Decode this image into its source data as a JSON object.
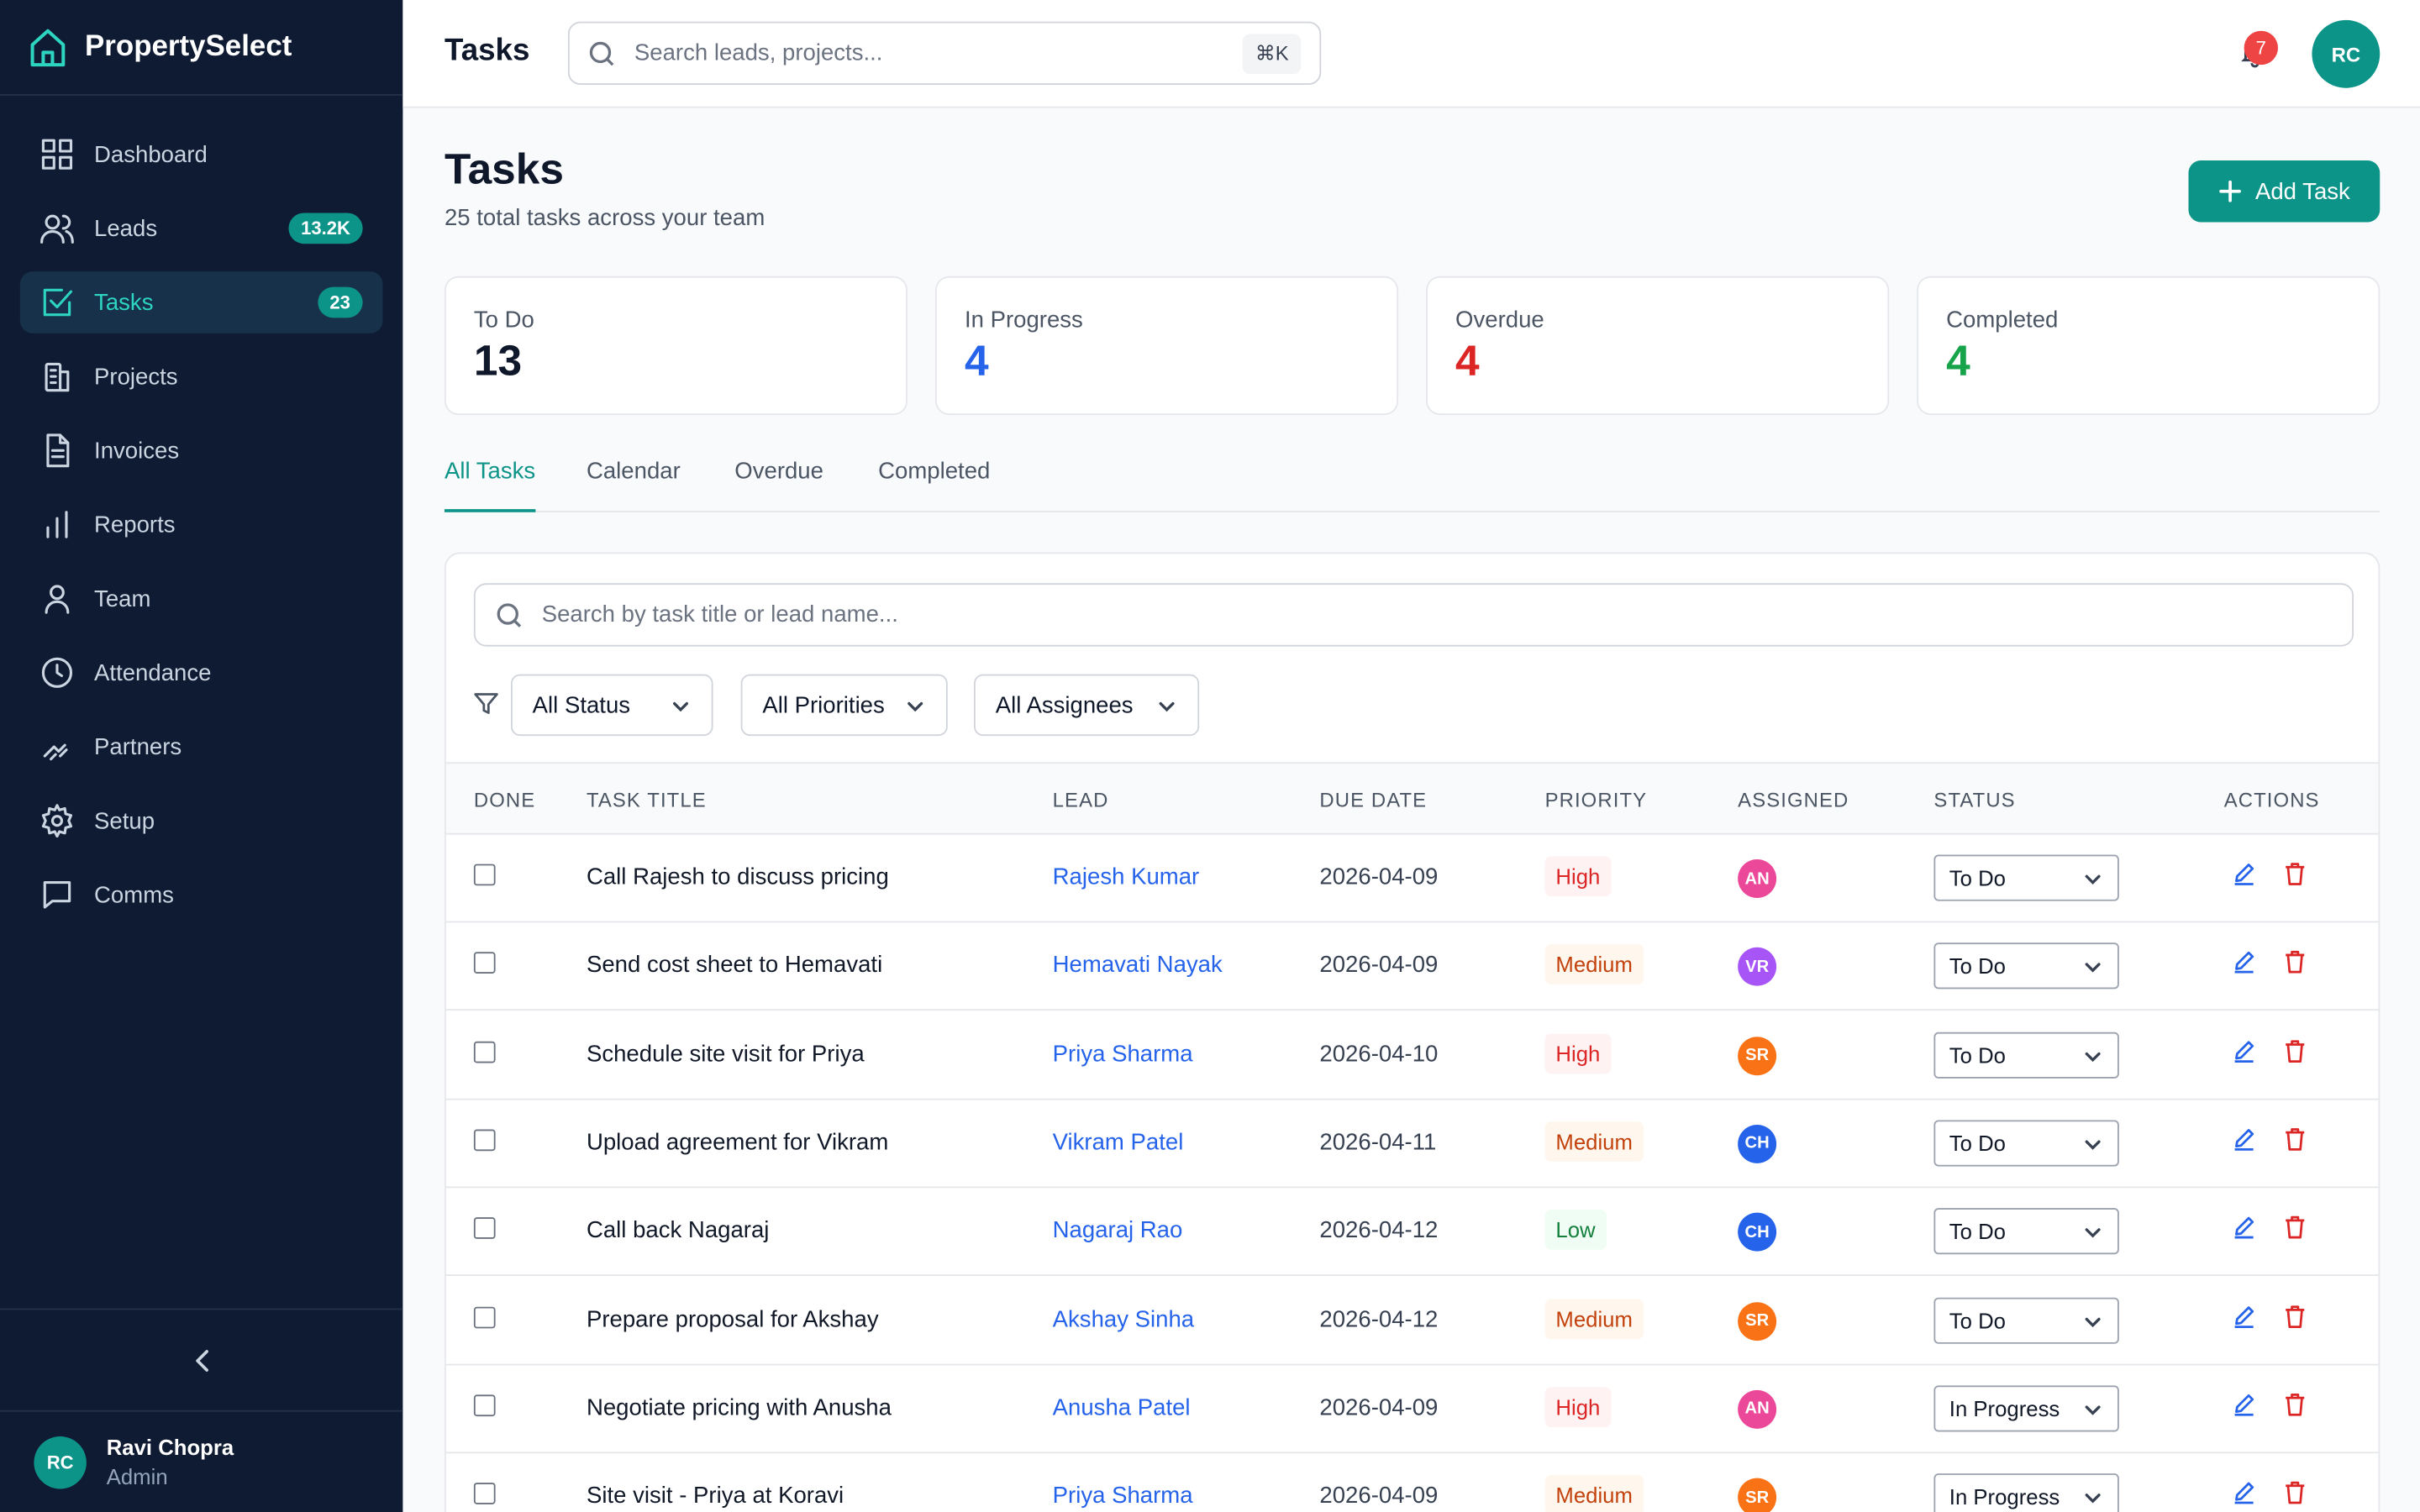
{
  "brand": {
    "name": "PropertySelect",
    "logo_icon": "home-icon"
  },
  "sidebar": {
    "items": [
      {
        "label": "Dashboard",
        "icon": "grid-icon",
        "badge": null,
        "active": false
      },
      {
        "label": "Leads",
        "icon": "users-icon",
        "badge": "13.2K",
        "active": false
      },
      {
        "label": "Tasks",
        "icon": "check-square-icon",
        "badge": "23",
        "active": true
      },
      {
        "label": "Projects",
        "icon": "building-icon",
        "badge": null,
        "active": false
      },
      {
        "label": "Invoices",
        "icon": "file-text-icon",
        "badge": null,
        "active": false
      },
      {
        "label": "Reports",
        "icon": "bar-chart-icon",
        "badge": null,
        "active": false
      },
      {
        "label": "Team",
        "icon": "user-icon",
        "badge": null,
        "active": false
      },
      {
        "label": "Attendance",
        "icon": "clock-icon",
        "badge": null,
        "active": false
      },
      {
        "label": "Partners",
        "icon": "handshake-icon",
        "badge": null,
        "active": false
      },
      {
        "label": "Setup",
        "icon": "gear-icon",
        "badge": null,
        "active": false
      },
      {
        "label": "Comms",
        "icon": "message-square-icon",
        "badge": null,
        "active": false
      }
    ],
    "user": {
      "initials": "RC",
      "name": "Ravi Chopra",
      "role": "Admin"
    }
  },
  "topbar": {
    "title": "Tasks",
    "search_placeholder": "Search leads, projects...",
    "shortcut": "⌘K",
    "notifications": "7",
    "avatar": "RC"
  },
  "page": {
    "title": "Tasks",
    "subtitle": "25 total tasks across your team",
    "add_button": "Add Task"
  },
  "stats": [
    {
      "label": "To Do",
      "value": "13",
      "color": "#0f172a"
    },
    {
      "label": "In Progress",
      "value": "4",
      "color": "#2563eb"
    },
    {
      "label": "Overdue",
      "value": "4",
      "color": "#dc2626"
    },
    {
      "label": "Completed",
      "value": "4",
      "color": "#16a34a"
    }
  ],
  "tabs": [
    "All Tasks",
    "Calendar",
    "Overdue",
    "Completed"
  ],
  "filters": {
    "search_placeholder": "Search by task title or lead name...",
    "status": "All Status",
    "priority": "All Priorities",
    "assignee": "All Assignees"
  },
  "table": {
    "headers": [
      "DONE",
      "TASK TITLE",
      "LEAD",
      "DUE DATE",
      "PRIORITY",
      "ASSIGNED",
      "STATUS",
      "ACTIONS"
    ],
    "rows": [
      {
        "title": "Call Rajesh to discuss pricing",
        "lead": "Rajesh Kumar",
        "due": "2026-04-09",
        "priority": "High",
        "assignee": "AN",
        "assignee_color": "#ec4899",
        "status": "To Do"
      },
      {
        "title": "Send cost sheet to Hemavati",
        "lead": "Hemavati Nayak",
        "due": "2026-04-09",
        "priority": "Medium",
        "assignee": "VR",
        "assignee_color": "#a855f7",
        "status": "To Do"
      },
      {
        "title": "Schedule site visit for Priya",
        "lead": "Priya Sharma",
        "due": "2026-04-10",
        "priority": "High",
        "assignee": "SR",
        "assignee_color": "#f97316",
        "status": "To Do"
      },
      {
        "title": "Upload agreement for Vikram",
        "lead": "Vikram Patel",
        "due": "2026-04-11",
        "priority": "Medium",
        "assignee": "CH",
        "assignee_color": "#2563eb",
        "status": "To Do"
      },
      {
        "title": "Call back Nagaraj",
        "lead": "Nagaraj Rao",
        "due": "2026-04-12",
        "priority": "Low",
        "assignee": "CH",
        "assignee_color": "#2563eb",
        "status": "To Do"
      },
      {
        "title": "Prepare proposal for Akshay",
        "lead": "Akshay Sinha",
        "due": "2026-04-12",
        "priority": "Medium",
        "assignee": "SR",
        "assignee_color": "#f97316",
        "status": "To Do"
      },
      {
        "title": "Negotiate pricing with Anusha",
        "lead": "Anusha Patel",
        "due": "2026-04-09",
        "priority": "High",
        "assignee": "AN",
        "assignee_color": "#ec4899",
        "status": "In Progress"
      },
      {
        "title": "Site visit - Priya at Koravi",
        "lead": "Priya Sharma",
        "due": "2026-04-09",
        "priority": "Medium",
        "assignee": "SR",
        "assignee_color": "#f97316",
        "status": "In Progress"
      }
    ]
  },
  "colors": {
    "accent": "#0d9488",
    "sidebar_bg": "#0f1b33",
    "link": "#2563eb"
  }
}
